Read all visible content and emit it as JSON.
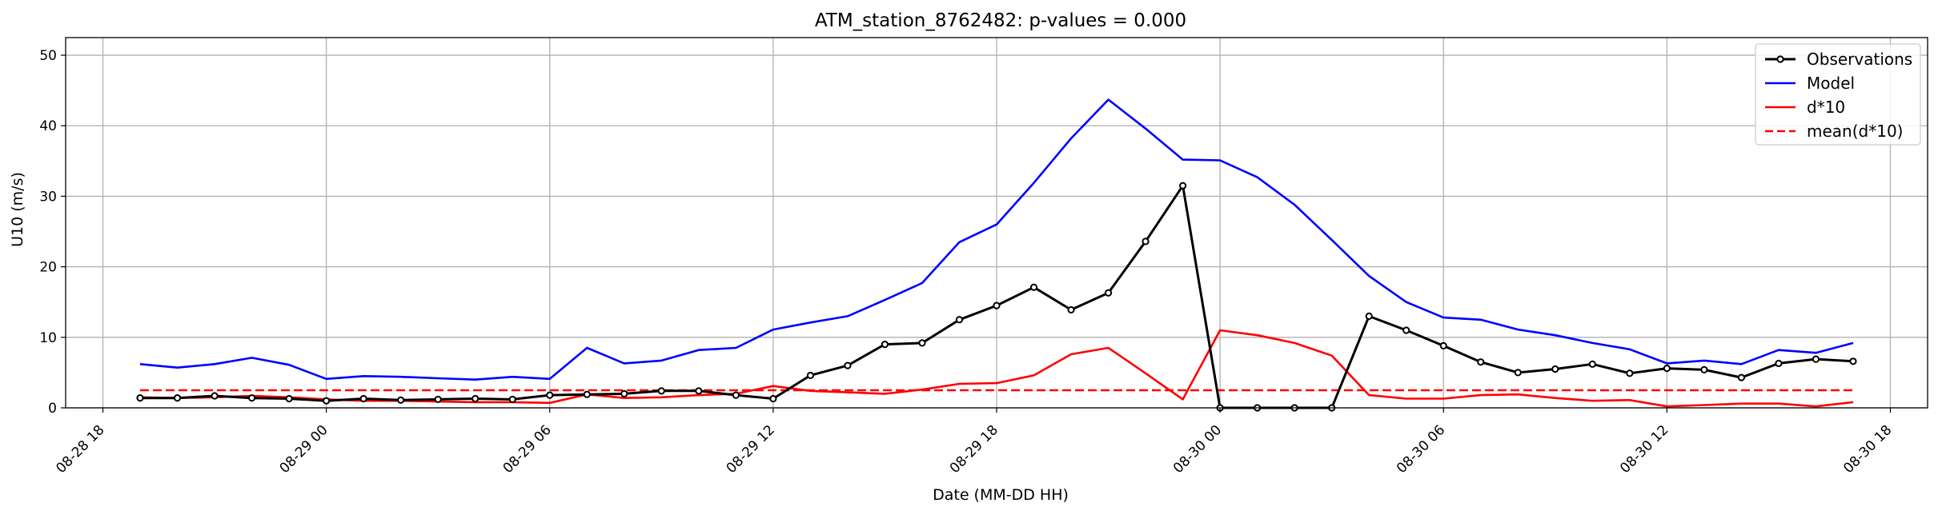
{
  "chart_data": {
    "type": "line",
    "title": "ATM_station_8762482: p-values = 0.000",
    "xlabel": "Date (MM-DD HH)",
    "ylabel": "U10 (m/s)",
    "xlim": [
      "08-28 17:00",
      "08-30 19:00"
    ],
    "ylim": [
      0,
      52.5
    ],
    "grid": true,
    "legend_position": "upper right",
    "x_ticks": [
      "08-28 18",
      "08-29 00",
      "08-29 06",
      "08-29 12",
      "08-29 18",
      "08-30 00",
      "08-30 06",
      "08-30 12",
      "08-30 18"
    ],
    "y_ticks": [
      0,
      10,
      20,
      30,
      40,
      50
    ],
    "x": [
      "08-28 19:00",
      "08-28 20:00",
      "08-28 21:00",
      "08-28 22:00",
      "08-28 23:00",
      "08-29 00:00",
      "08-29 01:00",
      "08-29 02:00",
      "08-29 03:00",
      "08-29 04:00",
      "08-29 05:00",
      "08-29 06:00",
      "08-29 07:00",
      "08-29 08:00",
      "08-29 09:00",
      "08-29 10:00",
      "08-29 11:00",
      "08-29 12:00",
      "08-29 13:00",
      "08-29 14:00",
      "08-29 15:00",
      "08-29 16:00",
      "08-29 17:00",
      "08-29 18:00",
      "08-29 19:00",
      "08-29 20:00",
      "08-29 21:00",
      "08-29 22:00",
      "08-29 23:00",
      "08-30 00:00",
      "08-30 01:00",
      "08-30 02:00",
      "08-30 03:00",
      "08-30 04:00",
      "08-30 05:00",
      "08-30 06:00",
      "08-30 07:00",
      "08-30 08:00",
      "08-30 09:00",
      "08-30 10:00",
      "08-30 11:00",
      "08-30 12:00",
      "08-30 13:00",
      "08-30 14:00",
      "08-30 15:00",
      "08-30 16:00",
      "08-30 17:00"
    ],
    "series": [
      {
        "name": "Observations",
        "color": "#000000",
        "marker": "circle",
        "values": [
          1.4,
          1.4,
          1.7,
          1.4,
          1.3,
          1.0,
          1.3,
          1.1,
          1.2,
          1.3,
          1.2,
          1.8,
          1.9,
          2.0,
          2.4,
          2.4,
          1.8,
          1.3,
          4.6,
          6.0,
          9.0,
          9.2,
          12.5,
          14.5,
          17.1,
          13.9,
          16.3,
          23.6,
          31.5,
          0.0,
          0.0,
          0.0,
          0.0,
          13.0,
          11.0,
          8.8,
          6.5,
          5.0,
          5.5,
          6.2,
          4.9,
          5.6,
          5.4,
          4.3,
          6.3,
          6.9,
          6.6
        ]
      },
      {
        "name": "Model",
        "color": "#0000ff",
        "values": [
          6.2,
          5.7,
          6.2,
          7.1,
          6.1,
          4.1,
          4.5,
          4.4,
          4.2,
          4.0,
          4.4,
          4.1,
          8.5,
          6.3,
          6.7,
          8.2,
          8.5,
          11.1,
          12.1,
          13.0,
          15.3,
          17.7,
          23.5,
          26.0,
          31.9,
          38.2,
          43.7,
          39.6,
          35.2,
          35.1,
          32.7,
          28.8,
          23.8,
          18.7,
          15.0,
          12.8,
          12.5,
          11.1,
          10.3,
          9.2,
          8.3,
          6.3,
          6.7,
          6.2,
          8.2,
          7.8,
          9.2
        ]
      },
      {
        "name": "d*10",
        "color": "#ff0000",
        "values": [
          1.5,
          1.4,
          1.5,
          1.7,
          1.5,
          1.2,
          1.0,
          1.0,
          0.9,
          0.8,
          0.8,
          0.7,
          1.9,
          1.4,
          1.5,
          1.8,
          2.0,
          3.1,
          2.4,
          2.2,
          2.0,
          2.6,
          3.4,
          3.5,
          4.6,
          7.6,
          8.5,
          4.9,
          1.2,
          11.0,
          10.3,
          9.2,
          7.4,
          1.8,
          1.3,
          1.3,
          1.8,
          1.9,
          1.4,
          1.0,
          1.1,
          0.2,
          0.4,
          0.6,
          0.6,
          0.2,
          0.8
        ]
      },
      {
        "name": "mean(d*10)",
        "color": "#ff0000",
        "linestyle": "dashed",
        "values": [
          2.5,
          2.5,
          2.5,
          2.5,
          2.5,
          2.5,
          2.5,
          2.5,
          2.5,
          2.5,
          2.5,
          2.5,
          2.5,
          2.5,
          2.5,
          2.5,
          2.5,
          2.5,
          2.5,
          2.5,
          2.5,
          2.5,
          2.5,
          2.5,
          2.5,
          2.5,
          2.5,
          2.5,
          2.5,
          2.5,
          2.5,
          2.5,
          2.5,
          2.5,
          2.5,
          2.5,
          2.5,
          2.5,
          2.5,
          2.5,
          2.5,
          2.5,
          2.5,
          2.5,
          2.5,
          2.5,
          2.5
        ]
      }
    ]
  }
}
